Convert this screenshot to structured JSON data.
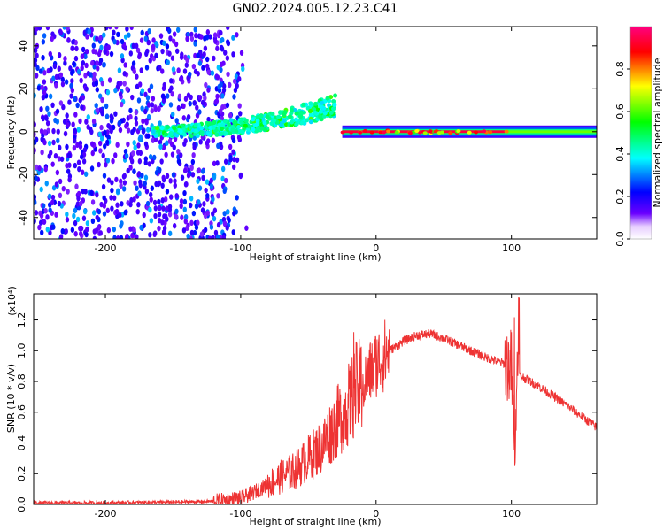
{
  "title": "GN02.2024.005.12.23.C41",
  "chart_data": [
    {
      "type": "heatmap",
      "xlabel": "Height of straight line (km)",
      "ylabel": "Frequency (Hz)",
      "xlim": [
        -253,
        163
      ],
      "ylim": [
        -50,
        49
      ],
      "x_ticks": [
        -200,
        -100,
        0,
        100
      ],
      "y_ticks": [
        -40,
        -20,
        0,
        20,
        40
      ],
      "colorbar": {
        "label": "Normalized spectral amplitude",
        "range": [
          0,
          1
        ],
        "ticks": [
          0.0,
          0.2,
          0.4,
          0.6,
          0.8
        ],
        "colormap": [
          "#ffffff",
          "#6a00ff",
          "#0000ff",
          "#00ffff",
          "#00ff00",
          "#ffff00",
          "#ff0000",
          "#ff0080"
        ]
      },
      "regions": [
        {
          "x": [
            -253,
            -115
          ],
          "freq": [
            -50,
            49
          ],
          "amplitude": [
            0.05,
            0.2
          ],
          "description": "noise"
        },
        {
          "x": [
            -165,
            -30
          ],
          "freq_center": [
            0,
            12
          ],
          "amplitude": [
            0.2,
            0.4
          ]
        },
        {
          "x": [
            -25,
            163
          ],
          "freq_center": 0,
          "amplitude": [
            0.4,
            0.9
          ]
        }
      ]
    },
    {
      "type": "line",
      "xlabel": "Height of straight line (km)",
      "ylabel": "SNR (10 * v/v)",
      "y_multiplier": "(x10⁴)",
      "xlim": [
        -253,
        163
      ],
      "ylim": [
        0,
        1.37
      ],
      "x_ticks": [
        -200,
        -100,
        0,
        100
      ],
      "y_ticks": [
        0.0,
        0.2,
        0.4,
        0.6,
        0.8,
        1.0,
        1.2
      ],
      "line_color": "#ee3333",
      "series_x": [
        -253,
        -200,
        -150,
        -120,
        -100,
        -90,
        -80,
        -70,
        -60,
        -50,
        -40,
        -30,
        -20,
        -15,
        -10,
        -5,
        0,
        10,
        20,
        30,
        40,
        50,
        60,
        70,
        80,
        90,
        100,
        102,
        104,
        110,
        120,
        140,
        163
      ],
      "series_y": [
        0.01,
        0.01,
        0.015,
        0.02,
        0.04,
        0.08,
        0.13,
        0.18,
        0.22,
        0.3,
        0.38,
        0.52,
        0.65,
        0.75,
        0.78,
        0.85,
        0.92,
        1.0,
        1.06,
        1.1,
        1.11,
        1.08,
        1.04,
        1.0,
        0.96,
        0.93,
        0.9,
        0.32,
        0.85,
        0.82,
        0.77,
        0.65,
        0.5
      ]
    }
  ]
}
